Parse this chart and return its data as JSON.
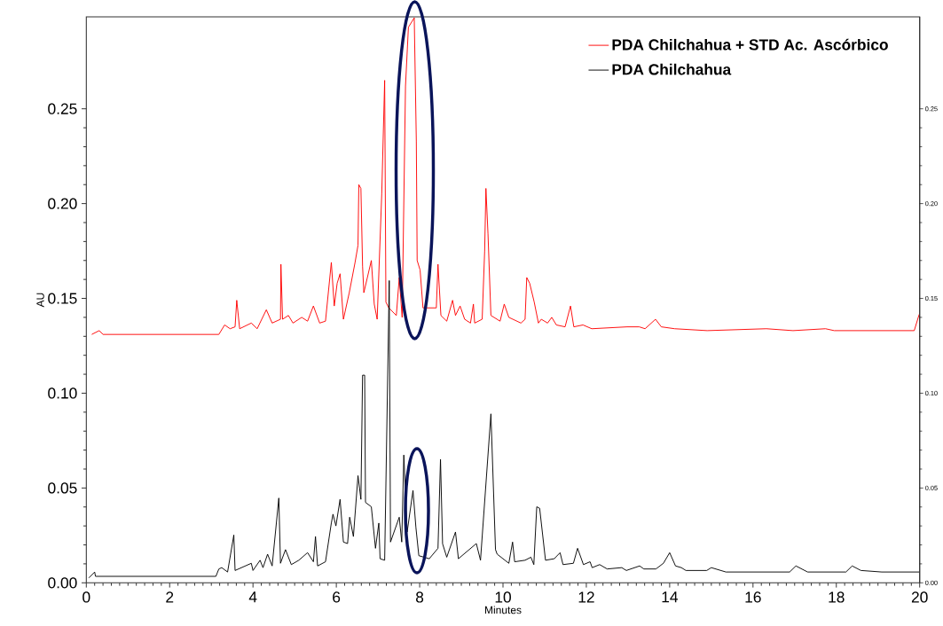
{
  "chart_data": {
    "type": "line",
    "xlabel": "Minutes",
    "ylabel": "AU",
    "xlim": [
      0,
      20
    ],
    "xticks": [
      0,
      2,
      4,
      6,
      8,
      10,
      12,
      14,
      16,
      18,
      20
    ],
    "ylim": [
      0,
      0.2985
    ],
    "yticks": [
      {
        "value": 0,
        "label": "0.00"
      },
      {
        "value": 0.05,
        "label": "0.05"
      },
      {
        "value": 0.1,
        "label": "0.10"
      },
      {
        "value": 0.15,
        "label": "0.15"
      },
      {
        "value": 0.2,
        "label": "0.20"
      },
      {
        "value": 0.25,
        "label": "0.25"
      }
    ],
    "y2lim": [
      0,
      0.2985
    ],
    "y2ticks": [
      {
        "value": 0,
        "label": "0.00"
      },
      {
        "value": 0.05,
        "label": "0.05"
      },
      {
        "value": 0.1,
        "label": "0.10"
      },
      {
        "value": 0.15,
        "label": "0.15"
      },
      {
        "value": 0.2,
        "label": "0.20"
      },
      {
        "value": 0.25,
        "label": "0.25"
      }
    ],
    "legend": "top right",
    "series": [
      {
        "name": "PDA Chilchahua + STD Ac. Ascórbico",
        "color": "#ff0000",
        "x": [
          0.13,
          0.31,
          0.4,
          3.18,
          3.32,
          3.45,
          3.57,
          3.61,
          3.68,
          3.96,
          4.1,
          4.32,
          4.46,
          4.66,
          4.67,
          4.71,
          4.85,
          4.96,
          5.17,
          5.31,
          5.45,
          5.6,
          5.74,
          5.88,
          5.95,
          6.02,
          6.09,
          6.17,
          6.31,
          6.45,
          6.52,
          6.54,
          6.59,
          6.63,
          6.66,
          6.84,
          6.91,
          6.98,
          7.09,
          7.16,
          7.19,
          7.26,
          7.44,
          7.51,
          7.58,
          7.66,
          7.73,
          7.87,
          7.92,
          7.94,
          8.01,
          8.08,
          8.26,
          8.4,
          8.44,
          8.51,
          8.65,
          8.79,
          8.86,
          8.97,
          9.08,
          9.22,
          9.29,
          9.32,
          9.5,
          9.56,
          9.59,
          9.64,
          9.71,
          9.93,
          10.03,
          10.14,
          10.43,
          10.53,
          10.57,
          10.64,
          10.75,
          10.85,
          10.92,
          11.07,
          11.17,
          11.28,
          11.49,
          11.62,
          11.7,
          11.92,
          12.13,
          12.98,
          13.27,
          13.41,
          13.66,
          13.8,
          14.12,
          14.9,
          16.32,
          16.96,
          17.74,
          17.95,
          19.87,
          19.98,
          20.0
        ],
        "values": [
          0.131,
          0.133,
          0.131,
          0.131,
          0.136,
          0.134,
          0.135,
          0.149,
          0.134,
          0.137,
          0.134,
          0.144,
          0.137,
          0.139,
          0.168,
          0.139,
          0.141,
          0.137,
          0.14,
          0.138,
          0.146,
          0.137,
          0.138,
          0.169,
          0.146,
          0.158,
          0.163,
          0.139,
          0.153,
          0.169,
          0.178,
          0.21,
          0.208,
          0.167,
          0.153,
          0.17,
          0.147,
          0.139,
          0.205,
          0.265,
          0.148,
          0.145,
          0.141,
          0.161,
          0.14,
          0.262,
          0.293,
          0.298,
          0.233,
          0.17,
          0.165,
          0.145,
          0.145,
          0.145,
          0.168,
          0.141,
          0.138,
          0.149,
          0.141,
          0.146,
          0.139,
          0.137,
          0.147,
          0.137,
          0.139,
          0.175,
          0.208,
          0.184,
          0.141,
          0.138,
          0.147,
          0.14,
          0.137,
          0.139,
          0.161,
          0.158,
          0.148,
          0.137,
          0.139,
          0.137,
          0.14,
          0.136,
          0.135,
          0.146,
          0.135,
          0.136,
          0.134,
          0.135,
          0.135,
          0.134,
          0.139,
          0.135,
          0.134,
          0.133,
          0.134,
          0.133,
          0.134,
          0.133,
          0.133,
          0.141,
          0.142
        ]
      },
      {
        "name": "PDA Chilchahua",
        "color": "#000000",
        "x": [
          0.06,
          0.2,
          0.22,
          3.11,
          3.18,
          3.25,
          3.39,
          3.54,
          3.57,
          3.96,
          4.0,
          4.17,
          4.24,
          4.35,
          4.46,
          4.62,
          4.66,
          4.78,
          4.92,
          5.1,
          5.31,
          5.45,
          5.5,
          5.55,
          5.74,
          5.88,
          5.92,
          5.99,
          6.09,
          6.17,
          6.27,
          6.32,
          6.41,
          6.52,
          6.59,
          6.63,
          6.68,
          6.7,
          6.84,
          6.94,
          7.02,
          7.05,
          7.16,
          7.27,
          7.3,
          7.51,
          7.57,
          7.62,
          7.7,
          7.84,
          7.91,
          7.98,
          8.23,
          8.44,
          8.5,
          8.55,
          8.65,
          8.86,
          8.93,
          9.36,
          9.46,
          9.71,
          9.82,
          9.86,
          10.14,
          10.23,
          10.28,
          10.53,
          10.67,
          10.74,
          10.81,
          10.88,
          11.02,
          11.23,
          11.37,
          11.44,
          11.69,
          11.79,
          11.93,
          12.09,
          12.14,
          12.32,
          12.5,
          12.85,
          12.96,
          13.28,
          13.38,
          13.67,
          13.85,
          14.0,
          14.14,
          14.28,
          14.39,
          14.89,
          15.0,
          15.35,
          16.88,
          17.03,
          17.31,
          18.23,
          18.38,
          18.59,
          19.09,
          20.0
        ],
        "values": [
          0.0026,
          0.0057,
          0.0034,
          0.0034,
          0.0073,
          0.008,
          0.0057,
          0.0252,
          0.0065,
          0.0103,
          0.0065,
          0.0119,
          0.008,
          0.0151,
          0.0089,
          0.0447,
          0.0103,
          0.0175,
          0.0096,
          0.0119,
          0.0159,
          0.0111,
          0.0244,
          0.0089,
          0.0111,
          0.0315,
          0.0362,
          0.03,
          0.044,
          0.0215,
          0.0207,
          0.0346,
          0.0244,
          0.0565,
          0.044,
          0.1095,
          0.1095,
          0.0424,
          0.0401,
          0.0182,
          0.0315,
          0.0127,
          0.0119,
          0.1594,
          0.0215,
          0.0346,
          0.0215,
          0.0674,
          0.0268,
          0.0487,
          0.0292,
          0.0143,
          0.0127,
          0.0182,
          0.0651,
          0.0206,
          0.0135,
          0.0268,
          0.0127,
          0.0207,
          0.0119,
          0.0891,
          0.0175,
          0.0151,
          0.0103,
          0.0215,
          0.0111,
          0.0119,
          0.0135,
          0.0096,
          0.0401,
          0.0393,
          0.0119,
          0.0127,
          0.0159,
          0.0096,
          0.0103,
          0.0182,
          0.0096,
          0.0111,
          0.008,
          0.0096,
          0.0073,
          0.008,
          0.0065,
          0.0089,
          0.0073,
          0.0073,
          0.0103,
          0.0159,
          0.0089,
          0.008,
          0.0065,
          0.0065,
          0.008,
          0.0057,
          0.0057,
          0.0089,
          0.0057,
          0.0057,
          0.0089,
          0.0065,
          0.0057,
          0.0057
        ]
      }
    ]
  }
}
